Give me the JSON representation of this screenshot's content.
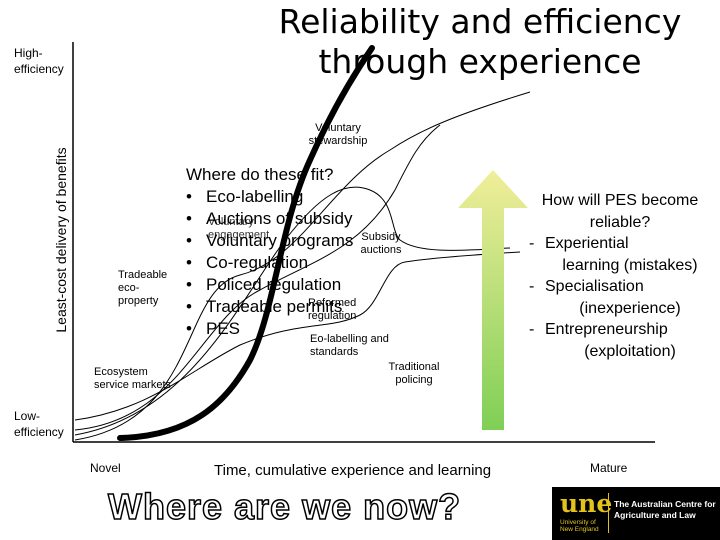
{
  "title": "Reliability and efficiency through experience",
  "axes": {
    "y_label": "Least-cost delivery of benefits",
    "y_high": "High-efficiency",
    "y_low": "Low-efficiency",
    "x_label": "Time, cumulative experience and learning",
    "x_start": "Novel",
    "x_end": "Mature"
  },
  "curve_labels": {
    "voluntary_stewardship": "Voluntary stewardship",
    "tradeable_eco_property": "Tradeable eco-property",
    "ecosystem_service_markets": "Ecosystem service markets",
    "traditional_policing": "Traditional policing",
    "voluntary_engagement": "Voluntary engagement",
    "subsidy_auctions": "Subsidy auctions",
    "reformed_regulation": "Reformed regulation",
    "eco_labelling_standards": "Eo-labelling and standards"
  },
  "question": {
    "heading": "Where do these fit?",
    "items": [
      "Eco-labelling",
      "Auctions of subsidy",
      "Voluntary programs",
      "Co-regulation",
      "Policed regulation",
      "Tradeable permits",
      "PES"
    ]
  },
  "pes": {
    "heading": "How will PES become reliable?",
    "items": [
      {
        "main": "Experiential",
        "sub": "learning (mistakes)"
      },
      {
        "main": "Specialisation",
        "sub": "(inexperience)"
      },
      {
        "main": "Entrepreneurship",
        "sub": "(exploitation)"
      }
    ]
  },
  "footer": {
    "where_now": "Where are we now?",
    "logo_mark": "une",
    "logo_sub": "University of New England",
    "logo_name": "The Australian Centre for Agriculture and Law"
  },
  "colors": {
    "arrow_top": "#f1ee9a",
    "arrow_bottom": "#7fcf56",
    "logo_bg": "#000000",
    "logo_accent": "#e3c21a"
  }
}
